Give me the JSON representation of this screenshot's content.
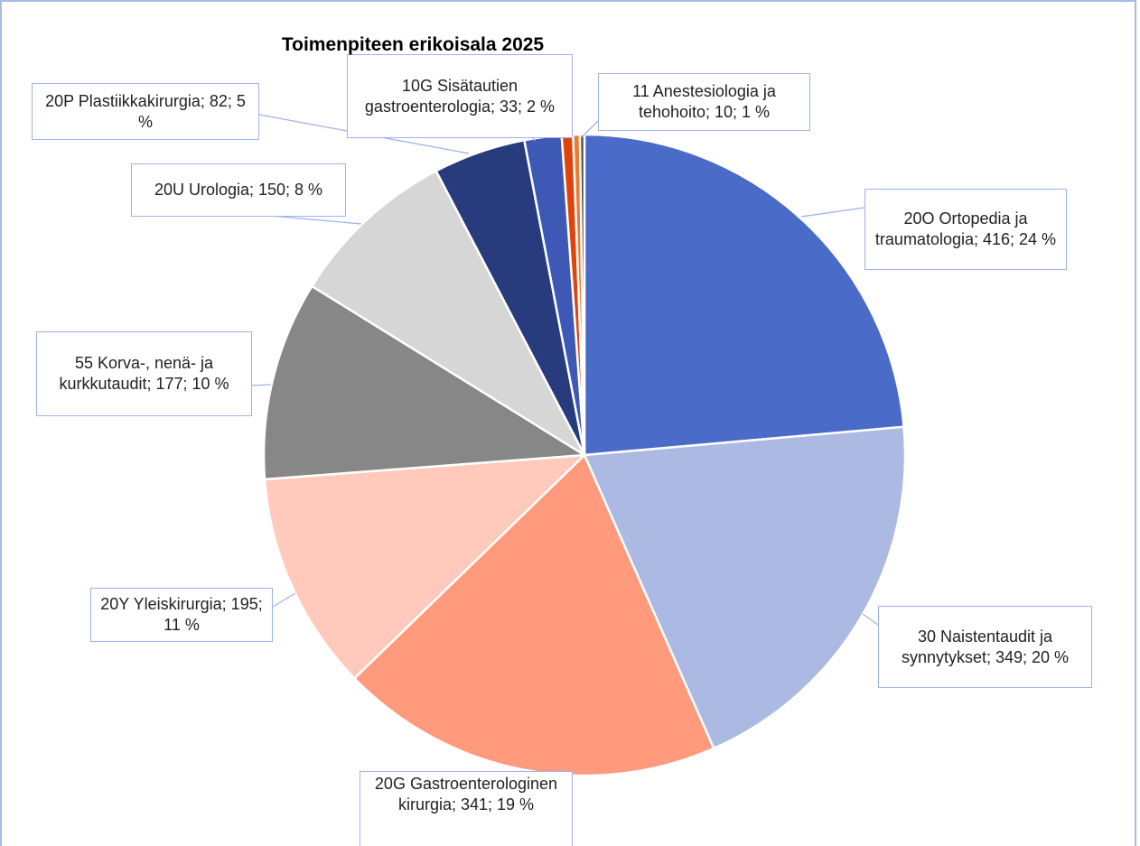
{
  "chart_data": {
    "type": "pie",
    "title": "Toimenpiteen erikoisala 2025",
    "categories": [
      "20O Ortopedia ja traumatologia",
      "30 Naistentaudit ja synnytykset",
      "20G Gastroenterologinen kirurgia",
      "20Y Yleiskirurgia",
      "55 Korva-, nenä- ja kurkkutaudit",
      "20U Urologia",
      "20P Plastiikkakirurgia",
      "10G Sisätautien gastroenterologia",
      "11 Anestesiologia ja tehohoito",
      null,
      null
    ],
    "values": [
      416,
      349,
      341,
      195,
      177,
      150,
      82,
      33,
      10,
      6,
      4
    ],
    "value_labels": [
      "20O Ortopedia ja traumatologia; 416; 24 %",
      "30 Naistentaudit ja synnytykset; 349; 20 %",
      "20G Gastroenterologinen kirurgia; 341; 19 %",
      "20Y Yleiskirurgia; 195; 11 %",
      "55 Korva-, nenä- ja kurkkutaudit; 177; 10 %",
      "20U Urologia; 150; 8 %",
      "20P Plastiikkakirurgia; 82; 5 %",
      "10G Sisätautien gastroenterologia; 33; 2 %",
      "11 Anestesiologia ja tehohoito; 10; 1 %",
      null,
      null
    ],
    "colors": [
      "#4a6cc8",
      "#abb9e3",
      "#ff9a7c",
      "#ffc9bb",
      "#878787",
      "#d6d6d6",
      "#283b7c",
      "#3d59b5",
      "#e0440e",
      "#f0782a",
      "#4d4d4d"
    ]
  }
}
